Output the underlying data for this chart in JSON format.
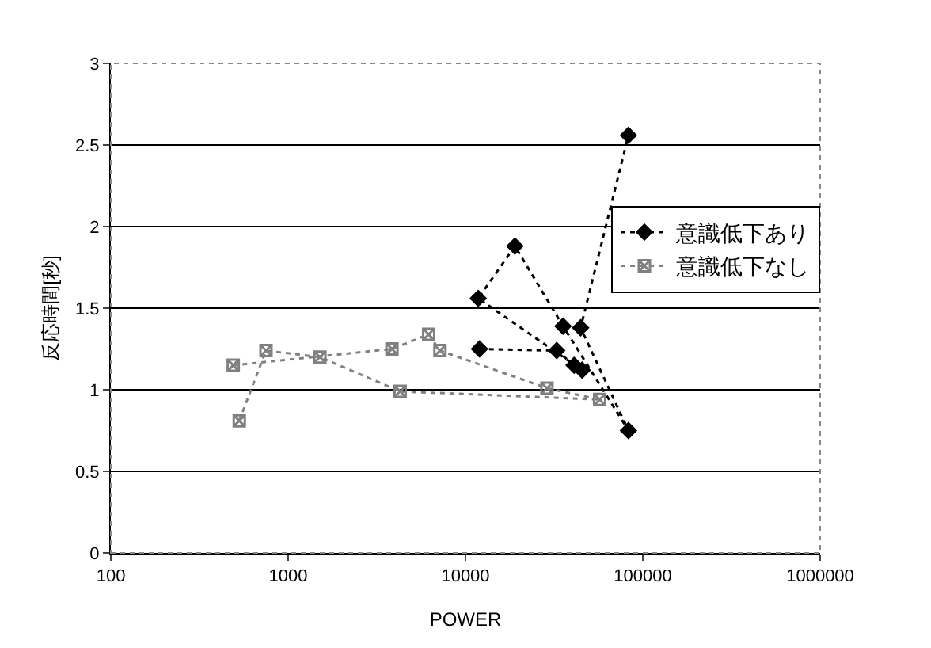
{
  "chart_data": {
    "type": "line",
    "xlabel": "POWER",
    "ylabel": "反応時間[秒]",
    "log": "x",
    "xlim": [
      100,
      1000000
    ],
    "xticks": [
      100,
      1000,
      10000,
      100000,
      1000000
    ],
    "ylim": [
      0,
      3
    ],
    "yticks": [
      0,
      0.5,
      1,
      1.5,
      2,
      2.5,
      3
    ],
    "grid": "y",
    "legend": "right",
    "line_style": "dotted",
    "series": [
      {
        "name": "意識低下あり",
        "color": "#000000",
        "marker": "diamond",
        "x": [
          12000,
          32700,
          41000,
          45500,
          11800,
          19000,
          35500,
          83000,
          44600,
          83000
        ],
        "values": [
          1.25,
          1.24,
          1.15,
          1.12,
          1.56,
          1.88,
          1.39,
          0.75,
          1.38,
          2.56
        ]
      },
      {
        "name": "意識低下なし",
        "color": "#808080",
        "marker": "cross",
        "x": [
          530,
          750,
          1510,
          4280,
          57100,
          28800,
          7180,
          6200,
          3850,
          490
        ],
        "values": [
          0.81,
          1.24,
          1.2,
          0.99,
          0.94,
          1.01,
          1.24,
          1.34,
          1.25,
          1.15
        ]
      }
    ]
  }
}
